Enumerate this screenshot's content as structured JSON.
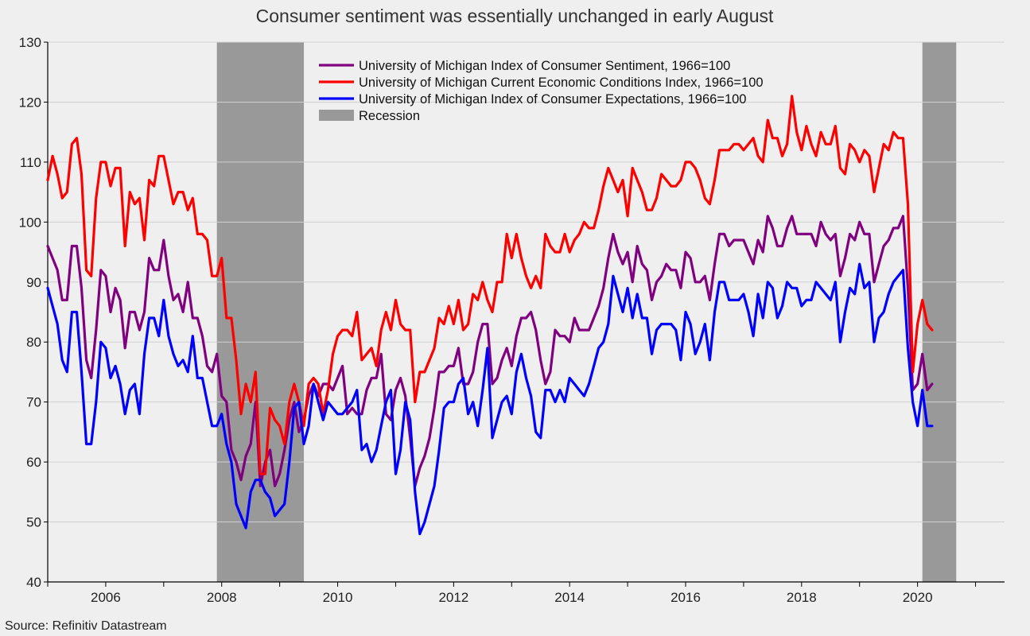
{
  "chart_data": {
    "type": "line",
    "title": "Consumer sentiment was essentially unchanged in early August",
    "source": "Source: Refinitiv Datastream",
    "ylim": [
      40,
      130
    ],
    "yticks": [
      40,
      50,
      60,
      70,
      80,
      90,
      100,
      110,
      120,
      130
    ],
    "xlim": [
      2005.0,
      2021.5
    ],
    "xticks": [
      2006,
      2008,
      2010,
      2012,
      2014,
      2016,
      2018,
      2020
    ],
    "grid": "horizontal",
    "legend_position": "top-center",
    "recessions": [
      {
        "start": 2007.917,
        "end": 2009.417
      },
      {
        "start": 2020.083,
        "end": 2020.667
      }
    ],
    "recession_label": "Recession",
    "recession_color": "#999999",
    "series": [
      {
        "name": "University of Michigan Index of Consumer Sentiment, 1966=100",
        "color": "#800080",
        "start": 2005.0,
        "step_months": 1,
        "values": [
          96,
          94,
          92,
          87,
          87,
          96,
          96,
          89,
          77,
          74,
          82,
          92,
          91,
          85,
          89,
          87,
          79,
          85,
          85,
          82,
          85,
          94,
          92,
          92,
          97,
          91,
          87,
          88,
          85,
          90,
          84,
          84,
          81,
          76,
          75,
          78,
          71,
          70,
          62,
          60,
          57,
          61,
          63,
          70,
          56,
          60,
          62,
          56,
          58,
          62,
          67,
          70,
          65,
          67,
          71,
          73,
          71,
          73,
          73,
          72,
          74,
          76,
          68,
          69,
          68,
          68,
          72,
          74,
          74,
          78,
          68,
          67,
          72,
          74,
          71,
          64,
          56,
          59,
          61,
          64,
          69,
          75,
          75,
          76,
          76,
          79,
          73,
          73,
          75,
          80,
          83,
          83,
          73,
          74,
          77,
          79,
          76,
          81,
          84,
          84,
          85,
          82,
          77,
          73,
          75,
          82,
          81,
          81,
          80,
          84,
          82,
          82,
          82,
          84,
          86,
          89,
          94,
          98,
          95,
          93,
          95,
          90,
          96,
          93,
          92,
          87,
          90,
          91,
          93,
          92,
          92,
          89,
          95,
          94,
          90,
          90,
          91,
          87,
          93,
          98,
          98,
          96,
          97,
          97,
          97,
          95,
          93,
          97,
          95,
          101,
          99,
          96,
          96,
          99,
          101,
          98,
          98,
          98,
          98,
          96,
          100,
          98,
          97,
          98,
          91,
          94,
          98,
          97,
          100,
          98,
          98,
          90,
          93,
          96,
          97,
          99,
          99,
          101,
          89,
          72,
          73,
          78,
          72,
          73
        ]
      },
      {
        "name": "University of Michigan Current Economic Conditions Index, 1966=100",
        "color": "#ff0000",
        "start": 2005.0,
        "step_months": 1,
        "values": [
          107,
          111,
          108,
          104,
          105,
          113,
          114,
          108,
          92,
          91,
          104,
          110,
          110,
          106,
          109,
          109,
          96,
          105,
          103,
          104,
          97,
          107,
          106,
          111,
          111,
          107,
          103,
          105,
          105,
          102,
          104,
          98,
          98,
          97,
          91,
          91,
          94,
          84,
          84,
          77,
          68,
          73,
          70,
          75,
          58,
          58,
          69,
          67,
          66,
          63,
          70,
          73,
          70,
          66,
          73,
          74,
          73,
          68,
          72,
          78,
          81,
          82,
          82,
          81,
          85,
          77,
          78,
          79,
          76,
          82,
          85,
          82,
          87,
          83,
          82,
          82,
          70,
          75,
          75,
          77,
          79,
          84,
          83,
          86,
          83,
          87,
          82,
          83,
          88,
          87,
          90,
          87,
          85,
          90,
          90,
          98,
          94,
          98,
          94,
          91,
          89,
          91,
          89,
          98,
          96,
          95,
          95,
          98,
          95,
          97,
          98,
          100,
          99,
          99,
          102,
          106,
          109,
          107,
          105,
          107,
          101,
          109,
          107,
          105,
          102,
          102,
          104,
          108,
          107,
          106,
          106,
          107,
          110,
          110,
          109,
          107,
          104,
          103,
          107,
          112,
          112,
          112,
          113,
          113,
          112,
          113,
          114,
          111,
          110,
          117,
          114,
          114,
          111,
          113,
          121,
          115,
          112,
          116,
          113,
          111,
          115,
          113,
          113,
          116,
          109,
          108,
          113,
          112,
          110,
          112,
          111,
          105,
          109,
          113,
          112,
          115,
          114,
          114,
          103,
          75,
          83,
          87,
          83,
          82
        ]
      },
      {
        "name": "University of Michigan Index of Consumer Expectations, 1966=100",
        "color": "#0000ff",
        "start": 2005.0,
        "step_months": 1,
        "values": [
          89,
          86,
          83,
          77,
          75,
          85,
          85,
          75,
          63,
          63,
          70,
          80,
          79,
          74,
          76,
          73,
          68,
          72,
          73,
          68,
          78,
          84,
          84,
          81,
          87,
          81,
          78,
          76,
          77,
          75,
          81,
          74,
          74,
          70,
          66,
          66,
          68,
          63,
          60,
          53,
          51,
          49,
          55,
          57,
          57,
          55,
          54,
          51,
          52,
          53,
          60,
          69,
          70,
          63,
          66,
          73,
          70,
          67,
          70,
          69,
          68,
          68,
          69,
          70,
          72,
          62,
          63,
          60,
          62,
          66,
          70,
          72,
          58,
          62,
          70,
          67,
          55,
          48,
          50,
          53,
          56,
          62,
          69,
          70,
          70,
          73,
          74,
          68,
          70,
          66,
          72,
          79,
          64,
          67,
          70,
          71,
          68,
          75,
          78,
          74,
          71,
          65,
          64,
          72,
          72,
          70,
          72,
          70,
          74,
          73,
          72,
          71,
          73,
          76,
          79,
          80,
          83,
          91,
          88,
          85,
          89,
          84,
          88,
          84,
          84,
          78,
          82,
          83,
          83,
          83,
          82,
          77,
          85,
          83,
          78,
          80,
          83,
          77,
          85,
          90,
          90,
          87,
          87,
          87,
          88,
          85,
          81,
          88,
          84,
          90,
          89,
          84,
          86,
          90,
          89,
          89,
          86,
          87,
          87,
          90,
          89,
          88,
          87,
          90,
          80,
          85,
          89,
          88,
          93,
          89,
          90,
          80,
          84,
          85,
          88,
          90,
          91,
          92,
          79,
          70,
          66,
          72,
          66,
          66
        ]
      }
    ]
  }
}
